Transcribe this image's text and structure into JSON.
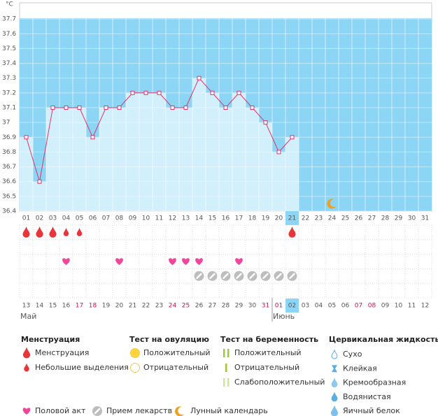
{
  "chart_data": {
    "type": "line",
    "y_unit": "°C",
    "categories": [
      "01",
      "02",
      "03",
      "04",
      "05",
      "06",
      "07",
      "08",
      "09",
      "10",
      "11",
      "12",
      "13",
      "14",
      "15",
      "16",
      "17",
      "18",
      "19",
      "20",
      "21",
      "22",
      "23",
      "24",
      "25",
      "26",
      "27",
      "28",
      "29",
      "30",
      "31"
    ],
    "series": [
      {
        "color": "#e0336c",
        "values": [
          36.9,
          36.6,
          37.1,
          37.1,
          37.1,
          36.9,
          37.1,
          37.1,
          37.2,
          37.2,
          37.2,
          37.1,
          37.1,
          37.3,
          37.2,
          37.1,
          37.2,
          37.1,
          37.0,
          36.8,
          36.9,
          null,
          null,
          null,
          null,
          null,
          null,
          null,
          null,
          null,
          null
        ]
      }
    ],
    "ylim": [
      36.4,
      37.8
    ],
    "yticks": [
      36.4,
      36.5,
      36.6,
      36.7,
      36.8,
      36.9,
      37,
      37.1,
      37.2,
      37.3,
      37.4,
      37.5,
      37.6,
      37.7
    ],
    "plot_color": "#8dd5f5",
    "bar_color": "#d2effc",
    "today_index": 20,
    "events": {
      "menstruation": {
        "heavy": [
          0,
          1,
          2,
          20
        ],
        "light": [
          3,
          4
        ]
      },
      "intercourse": [
        3,
        7,
        11,
        12,
        13,
        16
      ],
      "medication": [
        13,
        14,
        15,
        16,
        17,
        18,
        19,
        20
      ],
      "moon": [
        23
      ]
    },
    "calendar": {
      "dates": [
        "13",
        "14",
        "15",
        "16",
        "17",
        "18",
        "19",
        "20",
        "21",
        "22",
        "23",
        "24",
        "25",
        "26",
        "27",
        "28",
        "29",
        "30",
        "31",
        "01",
        "02",
        "03",
        "04",
        "05",
        "06",
        "07",
        "08",
        "09",
        "10",
        "11",
        "12"
      ],
      "weekend": [
        4,
        5,
        11,
        12,
        18,
        19,
        25,
        26
      ],
      "months": [
        {
          "label": "Май",
          "index": 0
        },
        {
          "label": "Июнь",
          "index": 19
        }
      ]
    }
  },
  "legend": {
    "groups": [
      {
        "title": "Менструация",
        "items": [
          "Менструация",
          "Небольшие выделения"
        ]
      },
      {
        "title": "Тест на овуляцию",
        "items": [
          "Положительный",
          "Отрицательный"
        ]
      },
      {
        "title": "Тест на беременность",
        "items": [
          "Положительный",
          "Отрицательный",
          "Слабоположительный"
        ]
      },
      {
        "title": "Цервикальная жидкость",
        "items": [
          "Сухо",
          "Клейкая",
          "Кремообразная",
          "Водянистая",
          "Яичный белок"
        ]
      }
    ],
    "bottom": [
      "Половой акт",
      "Прием лекарств",
      "Лунный календарь"
    ]
  }
}
